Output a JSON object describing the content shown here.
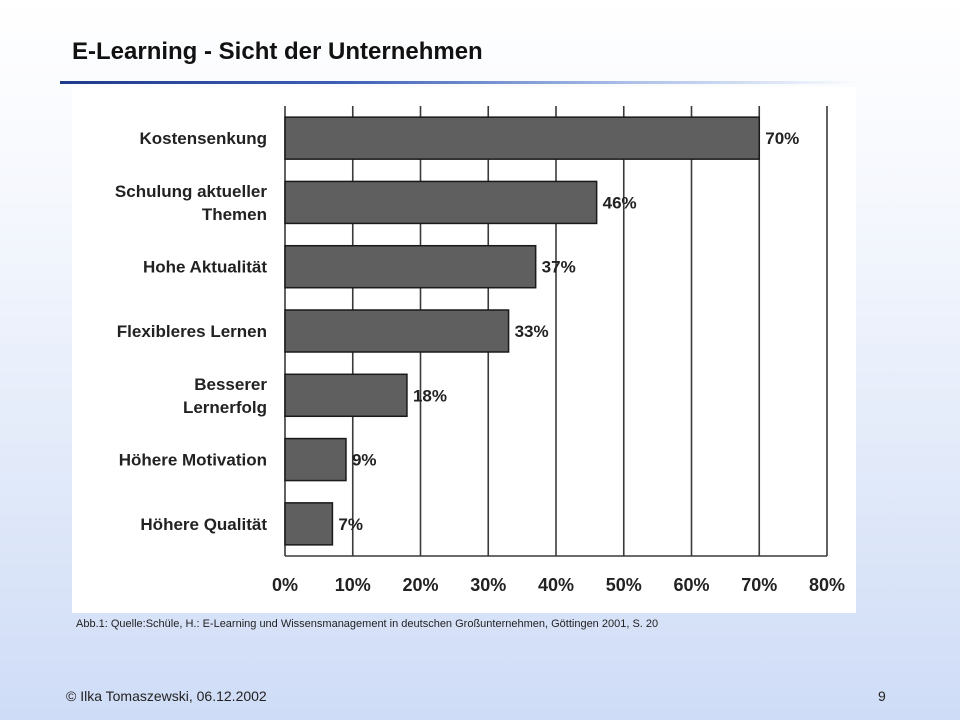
{
  "slide": {
    "title": "E-Learning - Sicht der Unternehmen",
    "caption": "Abb.1: Quelle:Schüle, H.: E-Learning und Wissensmanagement in deutschen Großunternehmen,  Göttingen 2001, S. 20",
    "footer_left": "© Ilka Tomaszewski, 06.12.2002",
    "footer_right": "9",
    "accent_color": "#1f3a8a"
  },
  "chart_data": {
    "type": "bar",
    "orientation": "horizontal",
    "title": "",
    "xlabel": "",
    "ylabel": "",
    "categories": [
      [
        "Kostensenkung"
      ],
      [
        "Schulung aktueller",
        "Themen"
      ],
      [
        "Hohe Aktualität"
      ],
      [
        "Flexibleres Lernen"
      ],
      [
        "Besserer",
        "Lernerfolg"
      ],
      [
        "Höhere Motivation"
      ],
      [
        "Höhere Qualität"
      ]
    ],
    "values": [
      70,
      46,
      37,
      33,
      18,
      9,
      7
    ],
    "value_labels": [
      "70%",
      "46%",
      "37%",
      "33%",
      "18%",
      "9%",
      "7%"
    ],
    "xlim": [
      0,
      80
    ],
    "x_ticks": [
      0,
      10,
      20,
      30,
      40,
      50,
      60,
      70,
      80
    ],
    "x_tick_labels": [
      "0%",
      "10%",
      "20%",
      "30%",
      "40%",
      "50%",
      "60%",
      "70%",
      "80%"
    ],
    "grid": "vertical",
    "bar_color": "#5f5f5f",
    "bar_edge_color": "#1a1a1a"
  }
}
